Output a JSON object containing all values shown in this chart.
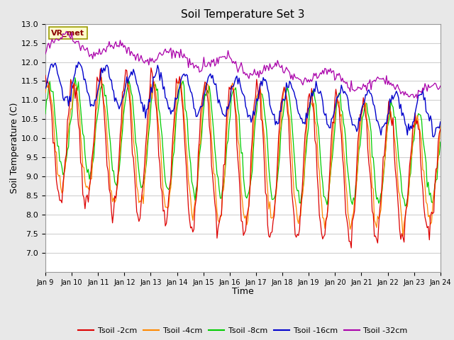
{
  "title": "Soil Temperature Set 3",
  "xlabel": "Time",
  "ylabel": "Soil Temperature (C)",
  "ylim": [
    6.5,
    13.0
  ],
  "yticks": [
    7.0,
    7.5,
    8.0,
    8.5,
    9.0,
    9.5,
    10.0,
    10.5,
    11.0,
    11.5,
    12.0,
    12.5,
    13.0
  ],
  "xtick_labels": [
    "Jan 9",
    "Jan 10",
    "Jan 11",
    "Jan 12",
    "Jan 13",
    "Jan 14",
    "Jan 15",
    "Jan 16",
    "Jan 17",
    "Jan 18",
    "Jan 19",
    "Jan 20",
    "Jan 21",
    "Jan 22",
    "Jan 23",
    "Jan 24"
  ],
  "colors": {
    "Tsoil -2cm": "#dd0000",
    "Tsoil -4cm": "#ff8800",
    "Tsoil -8cm": "#00cc00",
    "Tsoil -16cm": "#0000cc",
    "Tsoil -32cm": "#aa00aa"
  },
  "legend_label": "VR_met",
  "background_color": "#e8e8e8",
  "plot_bg_color": "#ffffff",
  "grid_color": "#d0d0d0",
  "n_points": 360
}
